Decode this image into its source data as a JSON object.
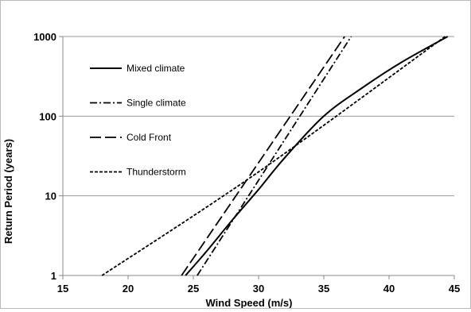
{
  "chart_data": {
    "type": "line",
    "title": "",
    "xlabel": "Wind Speed (m/s)",
    "ylabel": "Return Period (years)",
    "xlim": [
      15,
      45
    ],
    "ylim": [
      1,
      1000
    ],
    "yscale": "log",
    "x_ticks": [
      "15",
      "20",
      "25",
      "30",
      "35",
      "40",
      "45"
    ],
    "y_ticks": [
      "1",
      "10",
      "100",
      "1000"
    ],
    "y_tick_values": [
      1,
      10,
      100,
      1000
    ],
    "grid": "horizontal",
    "legend_position": "top-left",
    "series": [
      {
        "name": "Mixed climate",
        "style": "solid",
        "points": [
          [
            24.4,
            1
          ],
          [
            26,
            2
          ],
          [
            28,
            5
          ],
          [
            30,
            12
          ],
          [
            32,
            30
          ],
          [
            35,
            100
          ],
          [
            38,
            230
          ],
          [
            41,
            480
          ],
          [
            44.5,
            1000
          ]
        ]
      },
      {
        "name": "Single climate",
        "style": "dash-dot",
        "points": [
          [
            25.3,
            1
          ],
          [
            37.1,
            1000
          ]
        ]
      },
      {
        "name": "Cold Front",
        "style": "long-dash",
        "points": [
          [
            24.1,
            1
          ],
          [
            36.6,
            1000
          ]
        ]
      },
      {
        "name": "Thunderstorm",
        "style": "short-dash",
        "points": [
          [
            18,
            1
          ],
          [
            30,
            20
          ],
          [
            44.3,
            1000
          ]
        ]
      }
    ]
  }
}
